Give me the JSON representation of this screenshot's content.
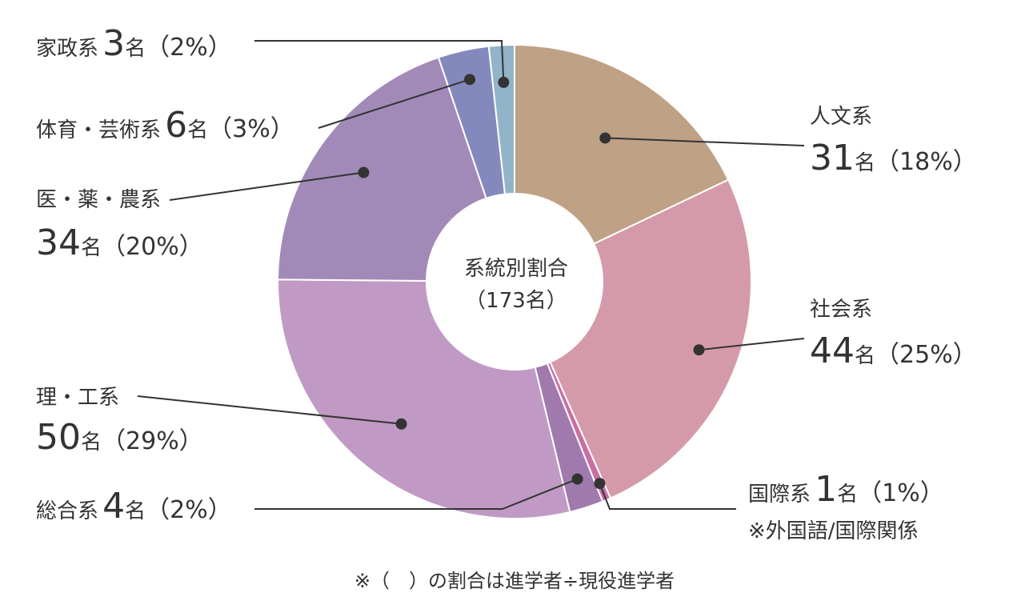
{
  "chart_data": {
    "type": "pie",
    "center_title": "系統別割合",
    "center_total": "（173名）",
    "total": 173,
    "unit": "名",
    "slices": [
      {
        "label": "人文系",
        "value": 31,
        "percent": "（18%）",
        "color": "#bfa185"
      },
      {
        "label": "社会系",
        "value": 44,
        "percent": "（25%）",
        "color": "#d59aa9"
      },
      {
        "label": "国際系",
        "value": 1,
        "percent": "（1%）",
        "color": "#c96fa4",
        "note": "※外国語/国際関係"
      },
      {
        "label": "総合系",
        "value": 4,
        "percent": "（2%）",
        "color": "#a079ad"
      },
      {
        "label": "理・工系",
        "value": 50,
        "percent": "（29%）",
        "color": "#c09ac5"
      },
      {
        "label": "医・薬・農系",
        "value": 34,
        "percent": "（20%）",
        "color": "#a18ab8"
      },
      {
        "label": "体育・芸術系",
        "value": 6,
        "percent": "（3%）",
        "color": "#8489bd"
      },
      {
        "label": "家政系",
        "value": 3,
        "percent": "（2%）",
        "color": "#92b4c8"
      }
    ],
    "footnote": "※（　）の割合は進学者÷現役進学者"
  }
}
